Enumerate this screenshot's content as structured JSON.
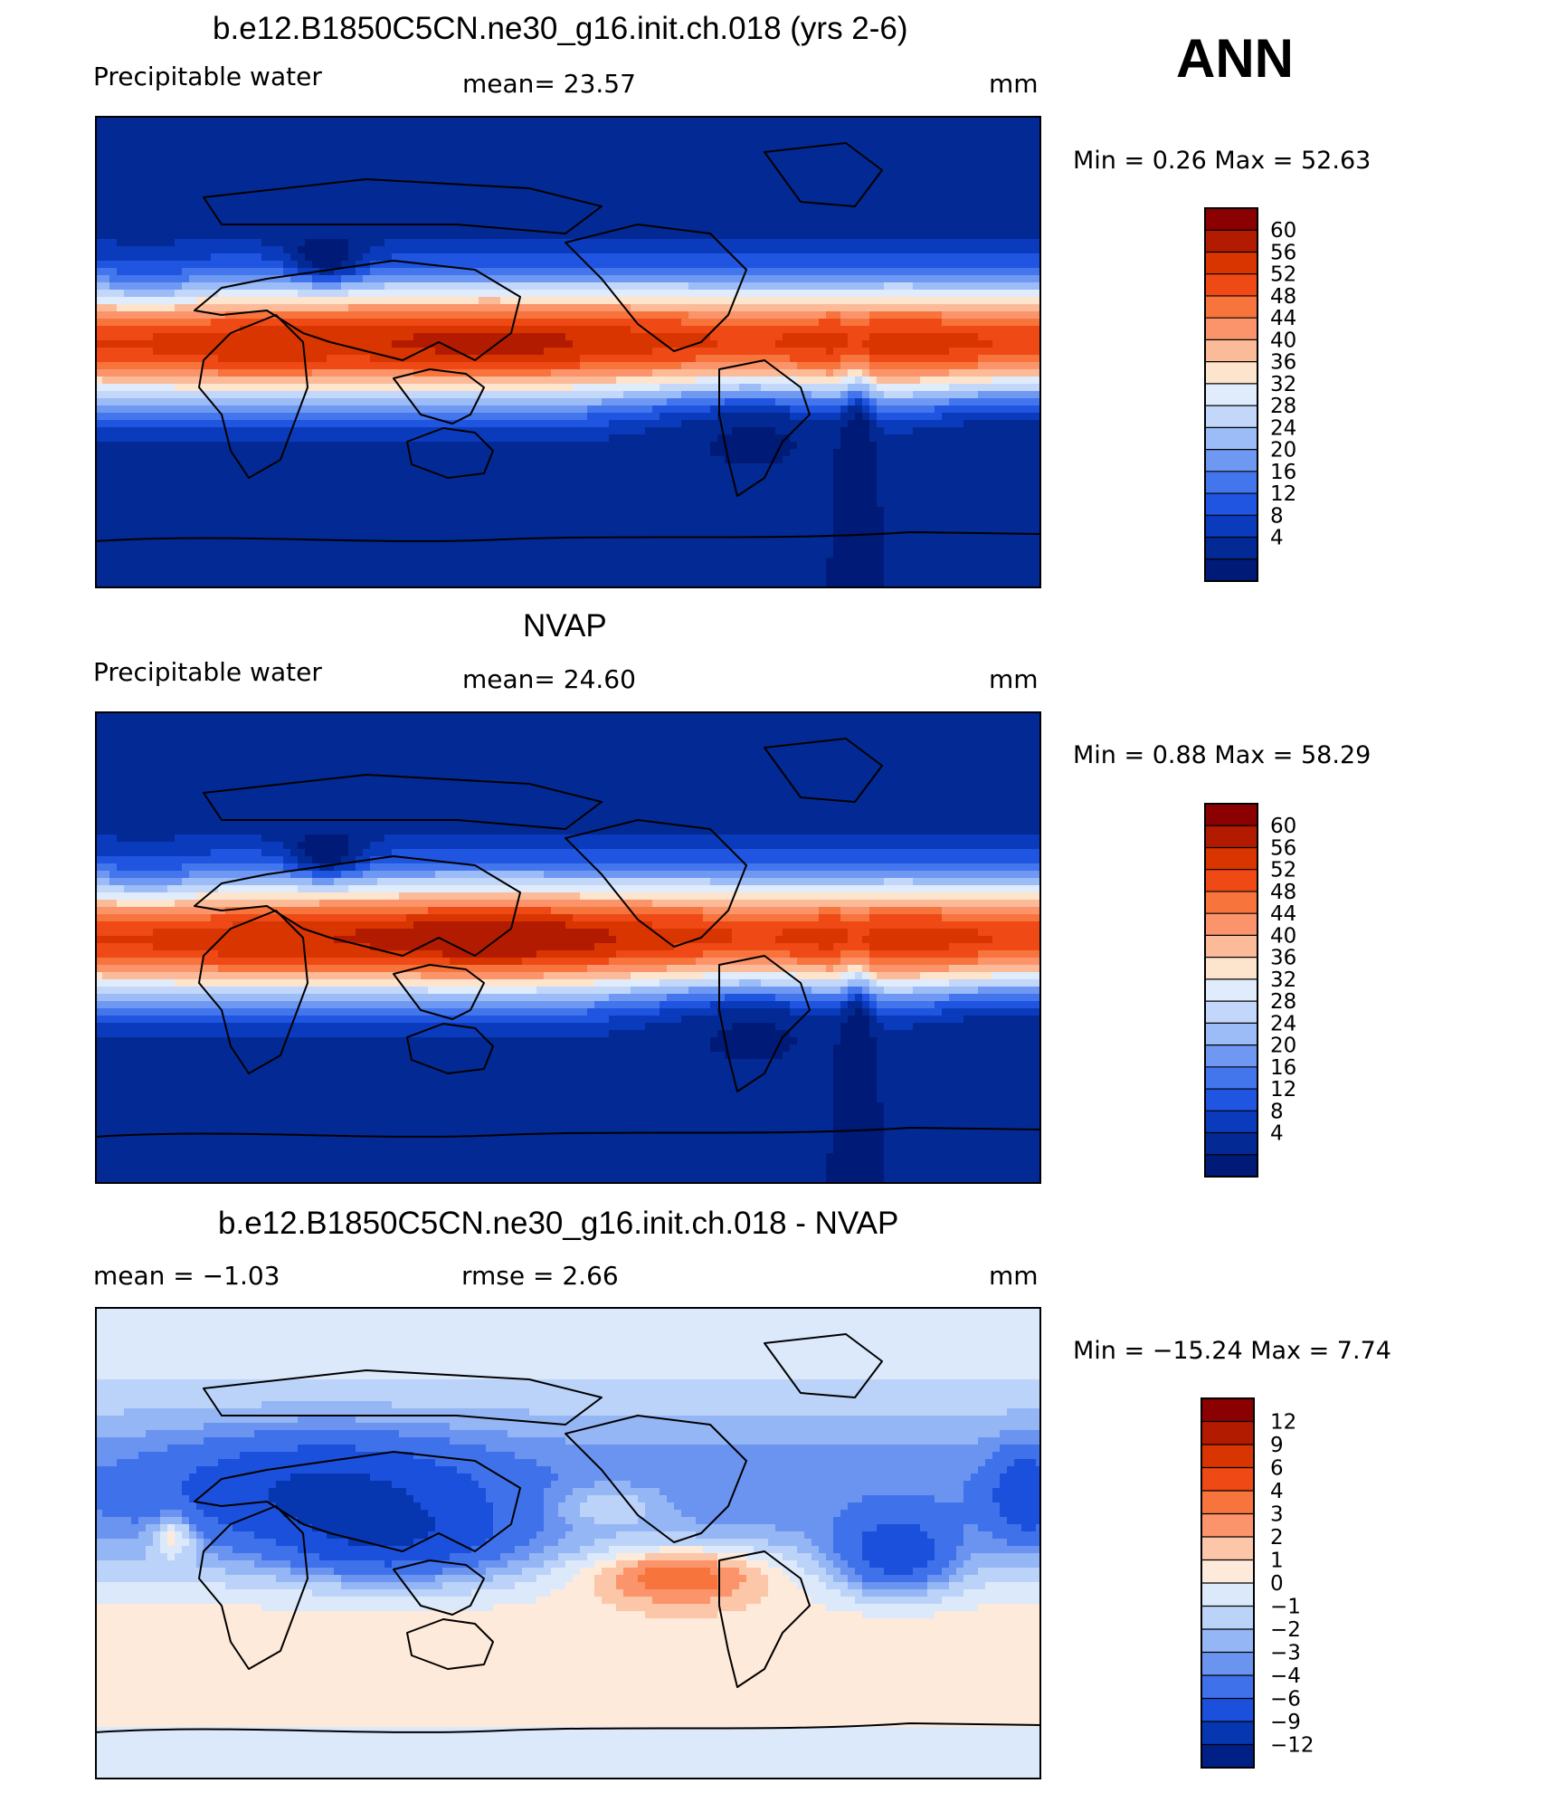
{
  "season": "ANN",
  "units": "mm",
  "panels": [
    {
      "title": "b.e12.B1850C5CN.ne30_g16.init.ch.018 (yrs 2-6)",
      "left_label": "Precipitable  water",
      "center_label": "mean=   23.57",
      "right_label": "mm",
      "minmax": "Min  =     0.26  Max  =    52.63",
      "colorbar": {
        "labels": [
          "60",
          "56",
          "52",
          "48",
          "44",
          "40",
          "36",
          "32",
          "28",
          "24",
          "20",
          "16",
          "12",
          "8",
          "4"
        ],
        "colors": [
          "#8b0000",
          "#b31b00",
          "#d93500",
          "#ef4a16",
          "#f7743d",
          "#fb946a",
          "#fcbb98",
          "#fde4cc",
          "#e0ecfb",
          "#c2d7fa",
          "#9bbcf7",
          "#6f98f2",
          "#4376ec",
          "#1f55e0",
          "#0a3bbd",
          "#032a94",
          "#001a78"
        ]
      },
      "map": {
        "variable": "Precipitable water",
        "palette": "diverging-blue-red",
        "pattern": "model"
      }
    },
    {
      "title": "NVAP",
      "left_label": "Precipitable  water",
      "center_label": "mean=   24.60",
      "right_label": "mm",
      "minmax": "Min  =     0.88  Max  =    58.29",
      "colorbar": {
        "labels": [
          "60",
          "56",
          "52",
          "48",
          "44",
          "40",
          "36",
          "32",
          "28",
          "24",
          "20",
          "16",
          "12",
          "8",
          "4"
        ],
        "colors": [
          "#8b0000",
          "#b31b00",
          "#d93500",
          "#ef4a16",
          "#f7743d",
          "#fb946a",
          "#fcbb98",
          "#fde4cc",
          "#e0ecfb",
          "#c2d7fa",
          "#9bbcf7",
          "#6f98f2",
          "#4376ec",
          "#1f55e0",
          "#0a3bbd",
          "#032a94",
          "#001a78"
        ]
      },
      "map": {
        "variable": "Precipitable water",
        "palette": "diverging-blue-red",
        "pattern": "observed"
      }
    },
    {
      "title": "b.e12.B1850C5CN.ne30_g16.init.ch.018 - NVAP",
      "left_label": "mean  =    −1.03",
      "center_label": "rmse  =     2.66",
      "right_label": "mm",
      "minmax": "Min  =  −15.24  Max  =      7.74",
      "colorbar": {
        "labels": [
          "12",
          "9",
          "6",
          "4",
          "3",
          "2",
          "1",
          "0",
          "−1",
          "−2",
          "−3",
          "−4",
          "−6",
          "−9",
          "−12"
        ],
        "colors": [
          "#8b0000",
          "#b31b00",
          "#d93500",
          "#ef4a16",
          "#f7743d",
          "#fb946a",
          "#fcc6a8",
          "#fdeadb",
          "#dce9fb",
          "#bcd3f9",
          "#95b6f5",
          "#6b94f0",
          "#3f72ea",
          "#1b50dc",
          "#0636b0",
          "#002086"
        ]
      },
      "map": {
        "variable": "Precipitable water difference",
        "palette": "diverging-blue-red",
        "pattern": "difference"
      }
    }
  ]
}
